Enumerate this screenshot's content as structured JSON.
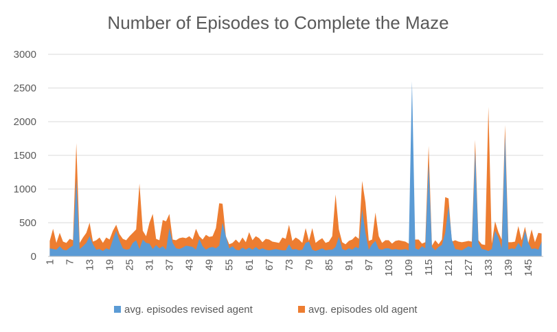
{
  "chart_data": {
    "type": "area",
    "title": "Number of Episodes to Complete the Maze",
    "xlabel": "",
    "ylabel": "",
    "ylim": [
      0,
      3000
    ],
    "yticks": [
      0,
      500,
      1000,
      1500,
      2000,
      2500,
      3000
    ],
    "xtick_step": 6,
    "grid": true,
    "legend_position": "bottom",
    "x": [
      1,
      2,
      3,
      4,
      5,
      6,
      7,
      8,
      9,
      10,
      11,
      12,
      13,
      14,
      15,
      16,
      17,
      18,
      19,
      20,
      21,
      22,
      23,
      24,
      25,
      26,
      27,
      28,
      29,
      30,
      31,
      32,
      33,
      34,
      35,
      36,
      37,
      38,
      39,
      40,
      41,
      42,
      43,
      44,
      45,
      46,
      47,
      48,
      49,
      50,
      51,
      52,
      53,
      54,
      55,
      56,
      57,
      58,
      59,
      60,
      61,
      62,
      63,
      64,
      65,
      66,
      67,
      68,
      69,
      70,
      71,
      72,
      73,
      74,
      75,
      76,
      77,
      78,
      79,
      80,
      81,
      82,
      83,
      84,
      85,
      86,
      87,
      88,
      89,
      90,
      91,
      92,
      93,
      94,
      95,
      96,
      97,
      98,
      99,
      100,
      101,
      102,
      103,
      104,
      105,
      106,
      107,
      108,
      109,
      110,
      111,
      112,
      113,
      114,
      115,
      116,
      117,
      118,
      119,
      120,
      121,
      122,
      123,
      124,
      125,
      126,
      127,
      128,
      129,
      130,
      131,
      132,
      133,
      134,
      135,
      136,
      137,
      138,
      139,
      140,
      141,
      142,
      143,
      144,
      145,
      146,
      147,
      148,
      149
    ],
    "series": [
      {
        "name": "avg. episodes revised agent",
        "color": "#5b9bd5",
        "values": [
          120,
          110,
          100,
          150,
          100,
          90,
          130,
          160,
          1150,
          110,
          150,
          200,
          300,
          180,
          100,
          110,
          80,
          120,
          100,
          250,
          380,
          230,
          120,
          100,
          110,
          200,
          240,
          110,
          250,
          200,
          190,
          110,
          170,
          120,
          150,
          100,
          420,
          200,
          120,
          110,
          130,
          160,
          150,
          140,
          100,
          260,
          150,
          100,
          130,
          140,
          120,
          160,
          500,
          300,
          120,
          150,
          100,
          90,
          130,
          100,
          130,
          100,
          140,
          100,
          120,
          100,
          90,
          100,
          110,
          100,
          90,
          90,
          180,
          100,
          110,
          90,
          100,
          200,
          220,
          100,
          80,
          100,
          120,
          90,
          100,
          100,
          140,
          290,
          110,
          90,
          120,
          100,
          140,
          120,
          700,
          350,
          100,
          180,
          230,
          110,
          100,
          120,
          120,
          100,
          110,
          100,
          100,
          110,
          90,
          2600,
          120,
          100,
          150,
          120,
          1380,
          140,
          90,
          140,
          170,
          350,
          750,
          250,
          110,
          100,
          90,
          120,
          150,
          130,
          1570,
          200,
          110,
          100,
          80,
          110,
          380,
          280,
          120,
          1800,
          100,
          120,
          110,
          200,
          130,
          380,
          200,
          110,
          120,
          100,
          220
        ]
      },
      {
        "name": "avg. episodes old agent",
        "color": "#ed7d31",
        "values": [
          230,
          410,
          200,
          350,
          220,
          200,
          260,
          240,
          1680,
          200,
          280,
          350,
          500,
          220,
          240,
          280,
          200,
          280,
          250,
          380,
          470,
          330,
          260,
          240,
          300,
          350,
          400,
          1080,
          380,
          300,
          500,
          630,
          260,
          240,
          540,
          520,
          630,
          250,
          240,
          270,
          280,
          270,
          300,
          250,
          410,
          300,
          250,
          320,
          290,
          300,
          420,
          790,
          780,
          300,
          180,
          200,
          250,
          200,
          280,
          210,
          360,
          240,
          300,
          270,
          210,
          260,
          250,
          220,
          210,
          200,
          280,
          260,
          470,
          230,
          280,
          250,
          200,
          420,
          230,
          420,
          200,
          240,
          270,
          200,
          220,
          300,
          920,
          400,
          210,
          180,
          230,
          250,
          300,
          260,
          1120,
          800,
          230,
          250,
          650,
          300,
          200,
          240,
          240,
          190,
          230,
          240,
          230,
          220,
          190,
          210,
          250,
          250,
          190,
          210,
          1640,
          160,
          240,
          180,
          250,
          880,
          860,
          220,
          240,
          220,
          210,
          220,
          230,
          220,
          1730,
          240,
          180,
          170,
          2220,
          190,
          520,
          360,
          250,
          1950,
          210,
          210,
          220,
          450,
          240,
          440,
          200,
          400,
          210,
          350,
          340
        ]
      }
    ]
  }
}
